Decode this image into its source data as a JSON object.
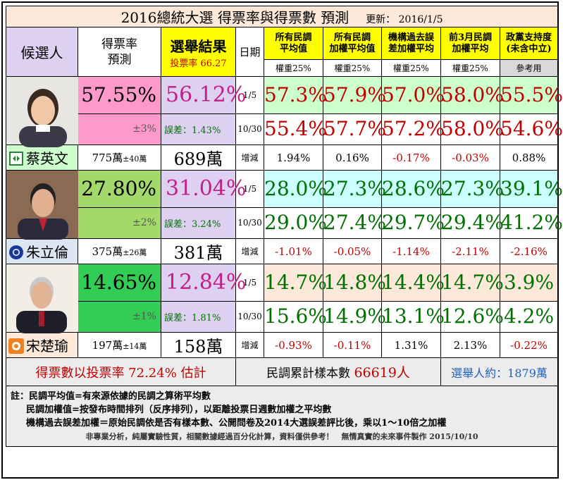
{
  "header": {
    "title": "2016總統大選 得票率與得票數 預測",
    "update": "更新： 2016/1/5"
  },
  "colors": {
    "pink": "#ff99cc",
    "lavender": "#ddd0f0",
    "yellow": "#ffff00",
    "green1": "#a3d96b",
    "green2": "#33cc55",
    "lightgreen": "#ccffcc",
    "lightcyan": "#ccffff",
    "peach": "#fde9d9",
    "gray": "#d9d9d9",
    "bottomgray": "#ececec",
    "ltblue": "#dce6f2"
  },
  "columns": {
    "candidate": "候選人",
    "rate_pred": "得票率\n預測",
    "result_title": "選舉結果",
    "result_turnout": "投票率 66.27",
    "date": "日期",
    "poll_cols": [
      {
        "label": "所有民調\n平均值",
        "weight": "權重25%"
      },
      {
        "label": "所有民調\n加權平均值",
        "weight": "權重25%"
      },
      {
        "label": "機構過去誤\n差加權平均",
        "weight": "權重25%"
      },
      {
        "label": "前3月民調\n加權平均",
        "weight": "權重25%"
      },
      {
        "label": "政黨支持度\n(未含中立)",
        "weight": "參考用"
      }
    ]
  },
  "candidates": [
    {
      "name": "蔡英文",
      "emblem": "dpp-emblem",
      "pred": "57.55%",
      "pm": "±3%",
      "result": "56.12%",
      "err": "誤差：1.43%",
      "count": "775萬",
      "count_pm": "±40萬",
      "actual_count": "689萬",
      "rows": [
        {
          "date": "1/5",
          "vals": [
            "57.3%",
            "57.9%",
            "57.0%",
            "58.0%",
            "55.5%"
          ]
        },
        {
          "date": "10/30",
          "vals": [
            "55.4%",
            "57.7%",
            "57.2%",
            "58.0%",
            "54.6%"
          ]
        }
      ],
      "change_label": "增減",
      "changes": [
        "1.94%",
        "0.16%",
        "-0.17%",
        "-0.03%",
        "0.88%"
      ]
    },
    {
      "name": "朱立倫",
      "emblem": "kmt-emblem",
      "pred": "27.80%",
      "pm": "±2%",
      "result": "31.04%",
      "err": "誤差：3.24%",
      "count": "375萬",
      "count_pm": "±26萬",
      "actual_count": "381萬",
      "rows": [
        {
          "date": "1/5",
          "vals": [
            "28.0%",
            "27.3%",
            "28.6%",
            "27.3%",
            "39.1%"
          ]
        },
        {
          "date": "10/30",
          "vals": [
            "29.0%",
            "27.4%",
            "29.7%",
            "29.4%",
            "41.2%"
          ]
        }
      ],
      "change_label": "增減",
      "changes": [
        "-1.01%",
        "-0.05%",
        "-1.14%",
        "-2.11%",
        "-2.16%"
      ]
    },
    {
      "name": "宋楚瑜",
      "emblem": "pfp-emblem",
      "pred": "14.65%",
      "pm": "±1%",
      "result": "12.84%",
      "err": "誤差：1.81%",
      "count": "197萬",
      "count_pm": "±14萬",
      "actual_count": "158萬",
      "rows": [
        {
          "date": "1/5",
          "vals": [
            "14.7%",
            "14.8%",
            "14.4%",
            "14.7%",
            "3.9%"
          ]
        },
        {
          "date": "10/30",
          "vals": [
            "15.6%",
            "14.9%",
            "13.1%",
            "12.6%",
            "4.2%"
          ]
        }
      ],
      "change_label": "增減",
      "changes": [
        "-0.93%",
        "-0.11%",
        "1.31%",
        "2.13%",
        "-0.22%"
      ]
    }
  ],
  "footer": {
    "left": "得票數以投票率 72.24% 估計",
    "mid_label": "民調累計樣本數 ",
    "mid_value": "66619人",
    "right": "選舉人約：1879萬"
  },
  "notes": {
    "line1": "註：民調平均值=有來源依據的民調之算術平均數",
    "line2": "民調加權值=按發布時間排列（反序排列），以距離投票日週數加權之平均數",
    "line3": "機構過去誤差加權＝原始民調依是否有樣本數、公開問卷及2014大選誤差評比後，乘以1～10倍之加權",
    "line4": "非專業分析，純屬實驗性質，相關數據經過百分化計算，資料僅供參考！　無情真實的未來事件製作 2015/10/10"
  }
}
